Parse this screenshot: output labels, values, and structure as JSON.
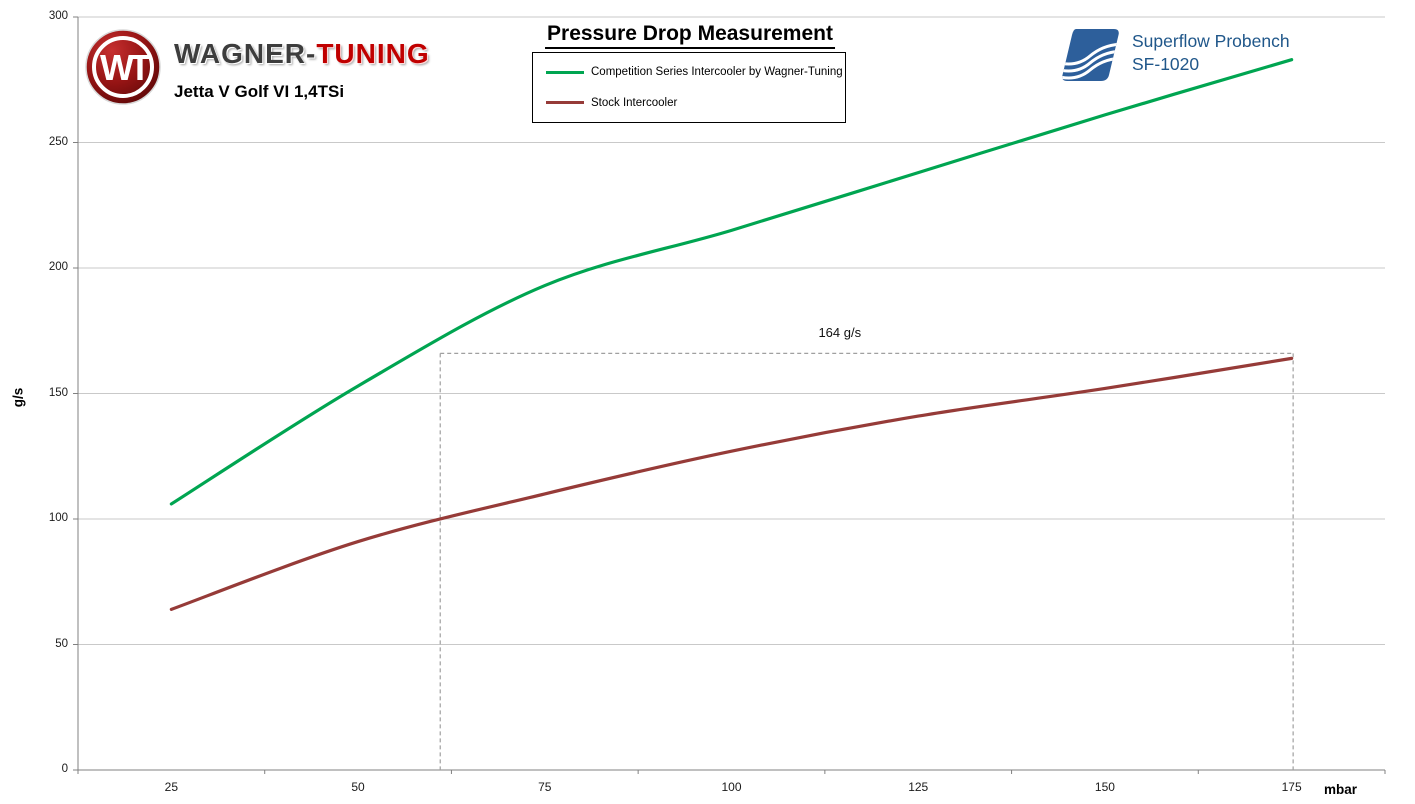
{
  "header": {
    "brand": {
      "name_primary": "WAGNER-",
      "name_secondary": "TUNING",
      "subtitle": "Jetta V Golf VI 1,4TSi"
    },
    "title": "Pressure Drop Measurement",
    "bench": {
      "line1": "Superflow Probench",
      "line2": "SF-1020"
    }
  },
  "legend": {
    "items": [
      {
        "label": "Competition Series Intercooler by Wagner-Tuning",
        "color": "#00A551"
      },
      {
        "label": "Stock Intercooler",
        "color": "#963B38"
      }
    ]
  },
  "chart_data": {
    "type": "line",
    "title": "Pressure Drop Measurement",
    "x": [
      25,
      50,
      75,
      100,
      125,
      150,
      175
    ],
    "x_tick_labels": [
      "25",
      "50",
      "75",
      "100",
      "125",
      "150",
      "175"
    ],
    "y_ticks": [
      0,
      50,
      100,
      150,
      200,
      250,
      300
    ],
    "y_tick_labels": [
      "0",
      "50",
      "100",
      "150",
      "200",
      "250",
      "300"
    ],
    "series": [
      {
        "name": "Competition Series Intercooler by Wagner-Tuning",
        "color": "#00A551",
        "values": [
          106,
          153,
          193,
          215,
          238,
          261,
          283
        ]
      },
      {
        "name": "Stock Intercooler",
        "color": "#963B38",
        "values": [
          64,
          91,
          110,
          127,
          141,
          152,
          164
        ]
      }
    ],
    "xlabel": "mbar",
    "ylabel": "g/s",
    "ylim": [
      0,
      300
    ],
    "grid": true,
    "legend_position": "top-center",
    "annotation": {
      "label": "164 g/s",
      "flow_level": 166,
      "x_start_mbar": 61,
      "x_end_mbar": 175.2,
      "label_mbar": 114.5
    }
  },
  "colors": {
    "gridline": "#C9C9C9",
    "axis": "#808080",
    "dashed": "#A0A0A0",
    "brand_dark": "#3D3D3D",
    "brand_red": "#C00000",
    "bench_blue": "#20578A"
  }
}
